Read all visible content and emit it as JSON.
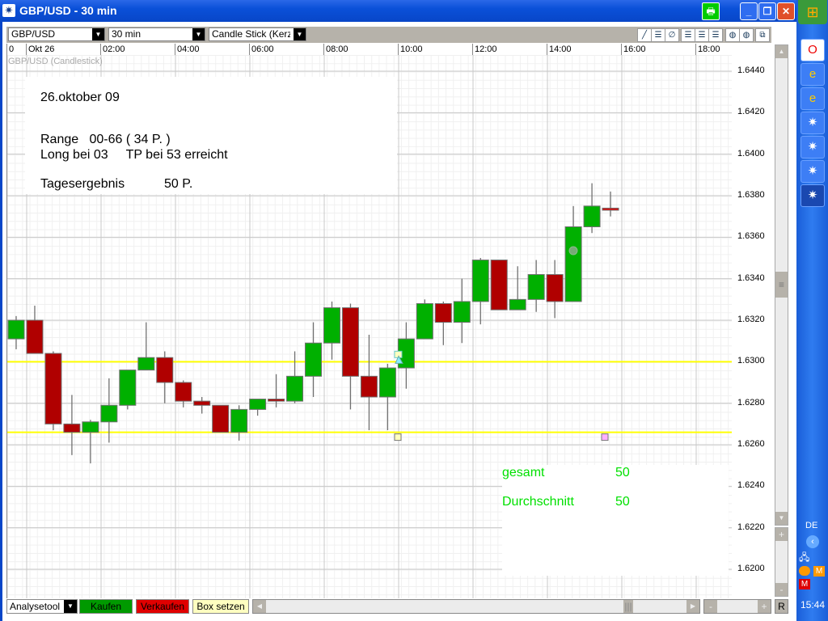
{
  "window": {
    "title": "GBP/USD - 30 min",
    "print_icon": "printer-icon",
    "minimize_icon": "minimize-icon",
    "restore_icon": "restore-icon",
    "close_icon": "close-icon"
  },
  "toolbar": {
    "symbol": "GBP/USD",
    "interval": "30 min",
    "chart_type": "Candle Stick (Kerzen",
    "tools": [
      "line-tool-icon",
      "hline-tool-icon",
      "fib-tool-icon",
      "grid1-icon",
      "grid2-icon",
      "grid3-icon",
      "color1-icon",
      "color2-icon",
      "detach-icon"
    ]
  },
  "time_axis": {
    "labels": [
      "0",
      "Okt 26",
      "02:00",
      "04:00",
      "06:00",
      "08:00",
      "10:00",
      "12:00",
      "14:00",
      "16:00",
      "18:00"
    ]
  },
  "chart_label": "GBP/USD (Candlestick)",
  "notes": {
    "date": "26.oktober 09",
    "range": "Range   00-66 ( 34 P. )",
    "long": "Long bei 03     TP bei 53 erreicht",
    "result_label": "Tagesergebnis",
    "result_value": "50 P.",
    "gesamt_label": "gesamt",
    "gesamt_value": "50",
    "avg_label": "Durchschnitt",
    "avg_value": "50"
  },
  "colors": {
    "up": "#00b000",
    "down": "#b00000",
    "level_line": "#ffff00",
    "stats_text": "#00e000"
  },
  "chart_data": {
    "type": "candlestick",
    "ylim": [
      1.6195,
      1.6445
    ],
    "yticks": [
      "1.6440",
      "1.6420",
      "1.6400",
      "1.6380",
      "1.6360",
      "1.6340",
      "1.6320",
      "1.6300",
      "1.6280",
      "1.6260",
      "1.6240",
      "1.6220",
      "1.6200"
    ],
    "levels": [
      1.63,
      1.6266
    ],
    "candles": [
      [
        1.6311,
        1.6322,
        1.6306,
        1.632
      ],
      [
        1.632,
        1.6327,
        1.6304,
        1.6304
      ],
      [
        1.6304,
        1.6305,
        1.6267,
        1.627
      ],
      [
        1.627,
        1.6284,
        1.6255,
        1.6266
      ],
      [
        1.6266,
        1.6272,
        1.6251,
        1.6271
      ],
      [
        1.6271,
        1.6292,
        1.6261,
        1.6279
      ],
      [
        1.6279,
        1.6296,
        1.6277,
        1.6296
      ],
      [
        1.6296,
        1.6319,
        1.6296,
        1.6302
      ],
      [
        1.6302,
        1.6305,
        1.628,
        1.629
      ],
      [
        1.629,
        1.6291,
        1.6278,
        1.6281
      ],
      [
        1.6281,
        1.6283,
        1.6275,
        1.6279
      ],
      [
        1.6279,
        1.6279,
        1.6266,
        1.6266
      ],
      [
        1.6266,
        1.6279,
        1.6262,
        1.6277
      ],
      [
        1.6277,
        1.6282,
        1.6274,
        1.6282
      ],
      [
        1.6282,
        1.6294,
        1.6278,
        1.6281
      ],
      [
        1.6281,
        1.6305,
        1.628,
        1.6293
      ],
      [
        1.6293,
        1.6319,
        1.6283,
        1.6309
      ],
      [
        1.6309,
        1.6329,
        1.6301,
        1.6326
      ],
      [
        1.6326,
        1.6328,
        1.6277,
        1.6293
      ],
      [
        1.6293,
        1.6313,
        1.6267,
        1.6283
      ],
      [
        1.6283,
        1.6299,
        1.6267,
        1.6297
      ],
      [
        1.6297,
        1.6319,
        1.6287,
        1.6311
      ],
      [
        1.6311,
        1.633,
        1.6311,
        1.6328
      ],
      [
        1.6328,
        1.6329,
        1.6308,
        1.6319
      ],
      [
        1.6319,
        1.634,
        1.6309,
        1.6329
      ],
      [
        1.6329,
        1.635,
        1.6318,
        1.6349
      ],
      [
        1.6349,
        1.6349,
        1.6325,
        1.6325
      ],
      [
        1.6325,
        1.6346,
        1.6325,
        1.633
      ],
      [
        1.633,
        1.6349,
        1.6324,
        1.6342
      ],
      [
        1.6342,
        1.6349,
        1.6321,
        1.6329
      ],
      [
        1.6329,
        1.6375,
        1.6329,
        1.6365
      ],
      [
        1.6365,
        1.6386,
        1.6362,
        1.6375
      ],
      [
        1.6374,
        1.6382,
        1.637,
        1.6373
      ]
    ]
  },
  "bottom": {
    "analysetool": "Analysetool",
    "buy": "Kaufen",
    "sell": "Verkaufen",
    "box": "Box setzen",
    "reset": "R",
    "minus": "-",
    "plus": "+"
  },
  "taskbar": {
    "language": "DE",
    "clock": "15:44"
  }
}
